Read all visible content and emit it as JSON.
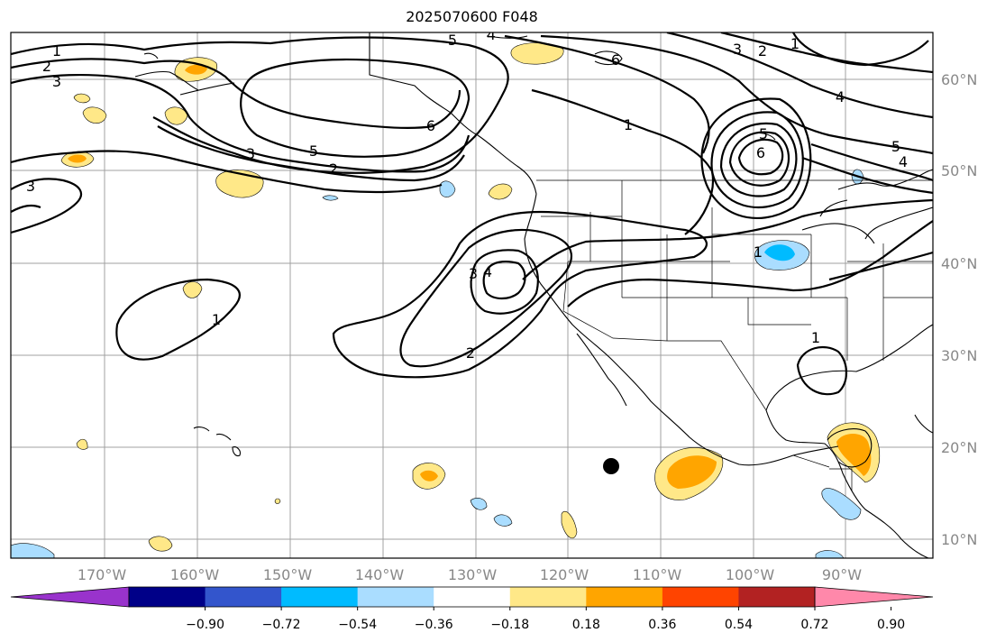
{
  "title": "2025070600 F048",
  "lat_labels": [
    "60°N",
    "50°N",
    "40°N",
    "30°N",
    "20°N",
    "10°N"
  ],
  "lon_labels": [
    "170°W",
    "160°W",
    "150°W",
    "140°W",
    "130°W",
    "120°W",
    "110°W",
    "100°W",
    "90°W"
  ],
  "colorbar": {
    "ticks": [
      "−0.90",
      "−0.72",
      "−0.54",
      "−0.36",
      "−0.18",
      "0.18",
      "0.36",
      "0.54",
      "0.72",
      "0.90"
    ],
    "colors": [
      "#9933cc",
      "#000088",
      "#3355cc",
      "#00bbff",
      "#aaddff",
      "#ffffff",
      "#ffe888",
      "#ffa500",
      "#ff4400",
      "#b22222",
      "#ff88aa"
    ]
  },
  "contour_labels": [
    "1",
    "2",
    "3",
    "4",
    "5",
    "6"
  ]
}
